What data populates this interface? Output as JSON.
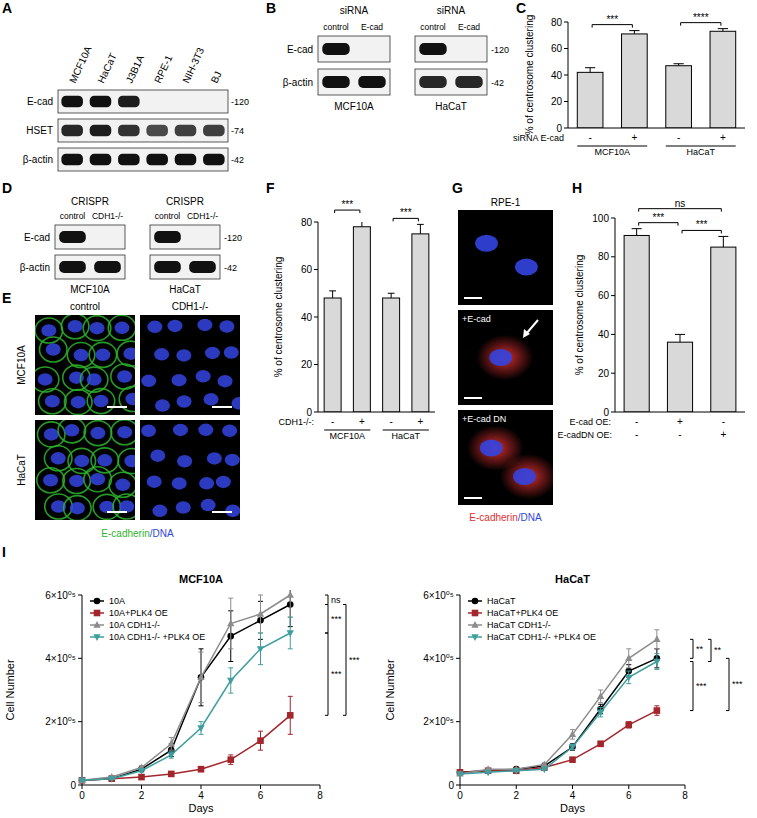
{
  "panel_labels": [
    "A",
    "B",
    "C",
    "D",
    "E",
    "F",
    "G",
    "H",
    "I"
  ],
  "blots": {
    "A": {
      "lanes": [
        "MCF10A",
        "HaCaT",
        "J3B1A",
        "RPE-1",
        "NIH-3T3",
        "BJ"
      ],
      "row_labels": [
        "E-cad",
        "HSET",
        "β-actin"
      ],
      "mw": [
        "-120",
        "-74",
        "-42"
      ],
      "bands": [
        [
          1,
          1,
          0.95,
          0,
          0,
          0
        ],
        [
          0.9,
          0.95,
          0.85,
          0.75,
          0.8,
          0.8
        ],
        [
          1,
          1,
          1,
          1,
          1,
          1
        ]
      ]
    },
    "B": {
      "header": "siRNA",
      "row_labels": [
        "E-cad",
        "β-actin"
      ],
      "mw": [
        "-120",
        "-42"
      ],
      "blots": [
        {
          "title": "MCF10A",
          "lanes": [
            "control",
            "E-cad"
          ],
          "bands": [
            [
              1,
              0
            ],
            [
              1,
              1
            ]
          ]
        },
        {
          "title": "HaCaT",
          "lanes": [
            "control",
            "E-cad"
          ],
          "bands": [
            [
              1,
              0
            ],
            [
              0.9,
              0.9
            ]
          ]
        }
      ]
    },
    "D": {
      "header": "CRISPR",
      "row_labels": [
        "E-cad",
        "β-actin"
      ],
      "mw": [
        "-120",
        "-42"
      ],
      "blots": [
        {
          "title": "MCF10A",
          "lanes": [
            "control",
            "CDH1-/-"
          ],
          "bands": [
            [
              1,
              0
            ],
            [
              1,
              1
            ]
          ]
        },
        {
          "title": "HaCaT",
          "lanes": [
            "control",
            "CDH1-/-"
          ],
          "bands": [
            [
              1,
              0
            ],
            [
              1,
              1
            ]
          ]
        }
      ]
    }
  },
  "images": {
    "E": {
      "columns": [
        "control",
        "CDH1-/-"
      ],
      "rows": [
        "MCF10A",
        "HaCaT"
      ],
      "caption": [
        {
          "text": "E-cadherin",
          "color": "#2db52d"
        },
        {
          "text": "/DNA",
          "color": "#3344e0"
        }
      ]
    },
    "G": {
      "title": "RPE-1",
      "labels": [
        "+E-cad",
        "+E-cad DN"
      ],
      "caption": [
        {
          "text": "E-cadherin",
          "color": "#e03030"
        },
        {
          "text": "/DNA",
          "color": "#3344e0"
        }
      ]
    }
  },
  "chart_data": [
    {
      "type": "bar",
      "y_label": "% of centrosome clustering",
      "categories": [
        "-",
        "+",
        "-",
        "+"
      ],
      "category_label": "siRNA E-cad",
      "groups": [
        "MCF10A",
        "HaCaT"
      ],
      "values": [
        42,
        71,
        47,
        73
      ],
      "errors": [
        3.5,
        2.5,
        1.5,
        2
      ],
      "color": "#d9d9d9",
      "ylim": [
        0,
        80
      ],
      "yticks": [
        0,
        20,
        40,
        60,
        80
      ],
      "annotations": [
        "***",
        "****"
      ]
    },
    {
      "type": "bar",
      "y_label": "% of centrosome clustering",
      "categories": [
        "-",
        "+",
        "-",
        "+"
      ],
      "category_label": "CDH1-/-:",
      "groups": [
        "MCF10A",
        "HaCaT"
      ],
      "values": [
        48,
        78,
        48,
        75
      ],
      "errors": [
        3,
        4.5,
        2,
        4
      ],
      "color": "#d9d9d9",
      "ylim": [
        0,
        80
      ],
      "yticks": [
        0,
        20,
        40,
        60,
        80
      ],
      "annotations": [
        "***",
        "***"
      ]
    },
    {
      "type": "bar",
      "y_label": "% of centrosome clustering",
      "categories": [
        "-",
        "+",
        "-"
      ],
      "category_label": "E-cad OE:",
      "categories2": [
        "-",
        "-",
        "+"
      ],
      "category2_label": "E-cadDN OE:",
      "values": [
        91,
        36,
        85
      ],
      "errors": [
        3.5,
        4,
        5.5
      ],
      "color": "#d9d9d9",
      "ylim": [
        0,
        100
      ],
      "yticks": [
        0,
        20,
        40,
        60,
        80,
        100
      ],
      "annotations": [
        "***",
        "***",
        "ns"
      ]
    },
    {
      "type": "line",
      "title": "MCF10A",
      "x_label": "Days",
      "y_label": "Cell Number",
      "x": [
        0,
        1,
        2,
        3,
        4,
        5,
        6,
        7
      ],
      "xlim": [
        0,
        8
      ],
      "xticks": [
        0,
        2,
        4,
        6,
        8
      ],
      "ylim": [
        0,
        600000
      ],
      "yticks": [
        0,
        {
          "value": 200000,
          "label": "2×10⁰⁵"
        },
        {
          "value": 400000,
          "label": "4×10⁰⁵"
        },
        {
          "value": 600000,
          "label": "6×10⁰⁵"
        }
      ],
      "legend": "upper left",
      "series": [
        {
          "name": "10A",
          "color": "#000000",
          "marker": "circle",
          "values": [
            15000,
            20000,
            50000,
            110000,
            340000,
            470000,
            520000,
            570000
          ],
          "errors": [
            3000,
            3000,
            5000,
            20000,
            90000,
            80000,
            60000,
            70000
          ]
        },
        {
          "name": "10A+PLK4 OE",
          "color": "#a3262c",
          "marker": "square",
          "values": [
            15000,
            20000,
            25000,
            35000,
            50000,
            80000,
            140000,
            220000
          ],
          "errors": [
            2000,
            2000,
            3000,
            5000,
            8000,
            15000,
            30000,
            60000
          ]
        },
        {
          "name": "10A CDH1-/-",
          "color": "#8c8c8c",
          "marker": "triangle-up",
          "values": [
            15000,
            25000,
            55000,
            130000,
            340000,
            510000,
            540000,
            600000
          ],
          "errors": [
            2000,
            3000,
            6000,
            20000,
            80000,
            80000,
            60000,
            70000
          ]
        },
        {
          "name": "10A CDH1-/- +PLK4 OE",
          "color": "#3f9e9e",
          "marker": "triangle-down",
          "values": [
            15000,
            20000,
            45000,
            95000,
            180000,
            330000,
            430000,
            480000
          ],
          "errors": [
            2000,
            2000,
            4000,
            10000,
            20000,
            40000,
            50000,
            50000
          ]
        }
      ],
      "annotations": [
        "ns",
        "***",
        "***",
        "***"
      ]
    },
    {
      "type": "line",
      "title": "HaCaT",
      "x_label": "Days",
      "y_label": "Cell Number",
      "x": [
        0,
        1,
        2,
        3,
        4,
        5,
        6,
        7
      ],
      "xlim": [
        0,
        8
      ],
      "xticks": [
        0,
        2,
        4,
        6,
        8
      ],
      "ylim": [
        0,
        600000
      ],
      "yticks": [
        0,
        {
          "value": 200000,
          "label": "2×10⁰⁵"
        },
        {
          "value": 400000,
          "label": "4×10⁰⁵"
        },
        {
          "value": 600000,
          "label": "6×10⁰⁵"
        }
      ],
      "legend": "upper left",
      "series": [
        {
          "name": "HaCaT",
          "color": "#000000",
          "marker": "circle",
          "values": [
            40000,
            45000,
            50000,
            60000,
            120000,
            240000,
            360000,
            400000
          ],
          "errors": [
            3000,
            3000,
            3000,
            5000,
            10000,
            15000,
            20000,
            30000
          ]
        },
        {
          "name": "HaCaT+PLK4 OE",
          "color": "#a3262c",
          "marker": "square",
          "values": [
            40000,
            45000,
            45000,
            55000,
            80000,
            130000,
            190000,
            235000
          ],
          "errors": [
            3000,
            3000,
            3000,
            3000,
            5000,
            8000,
            10000,
            15000
          ]
        },
        {
          "name": "HaCaT CDH1-/-",
          "color": "#8c8c8c",
          "marker": "triangle-up",
          "values": [
            35000,
            50000,
            50000,
            65000,
            160000,
            280000,
            400000,
            460000
          ],
          "errors": [
            3000,
            3000,
            3000,
            5000,
            15000,
            20000,
            30000,
            30000
          ]
        },
        {
          "name": "HaCaT CDH1-/- +PLK4 OE",
          "color": "#3f9e9e",
          "marker": "triangle-down",
          "values": [
            35000,
            40000,
            45000,
            50000,
            120000,
            230000,
            340000,
            390000
          ],
          "errors": [
            3000,
            3000,
            3000,
            3000,
            8000,
            15000,
            20000,
            25000
          ]
        }
      ],
      "annotations": [
        "**",
        "**",
        "***",
        "***"
      ]
    }
  ]
}
